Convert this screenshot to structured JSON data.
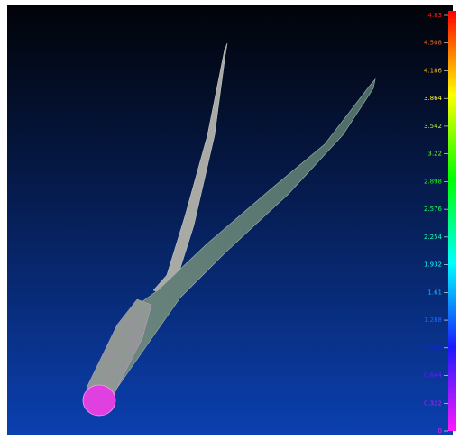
{
  "colorbar": {
    "labels": [
      "4.83",
      "4.508",
      "4.186",
      "3.864",
      "3.542",
      "3.22",
      "2.898",
      "2.576",
      "2.254",
      "1.932",
      "1.61",
      "1.288",
      "0.966",
      "0.644",
      "0.322",
      "0"
    ]
  }
}
